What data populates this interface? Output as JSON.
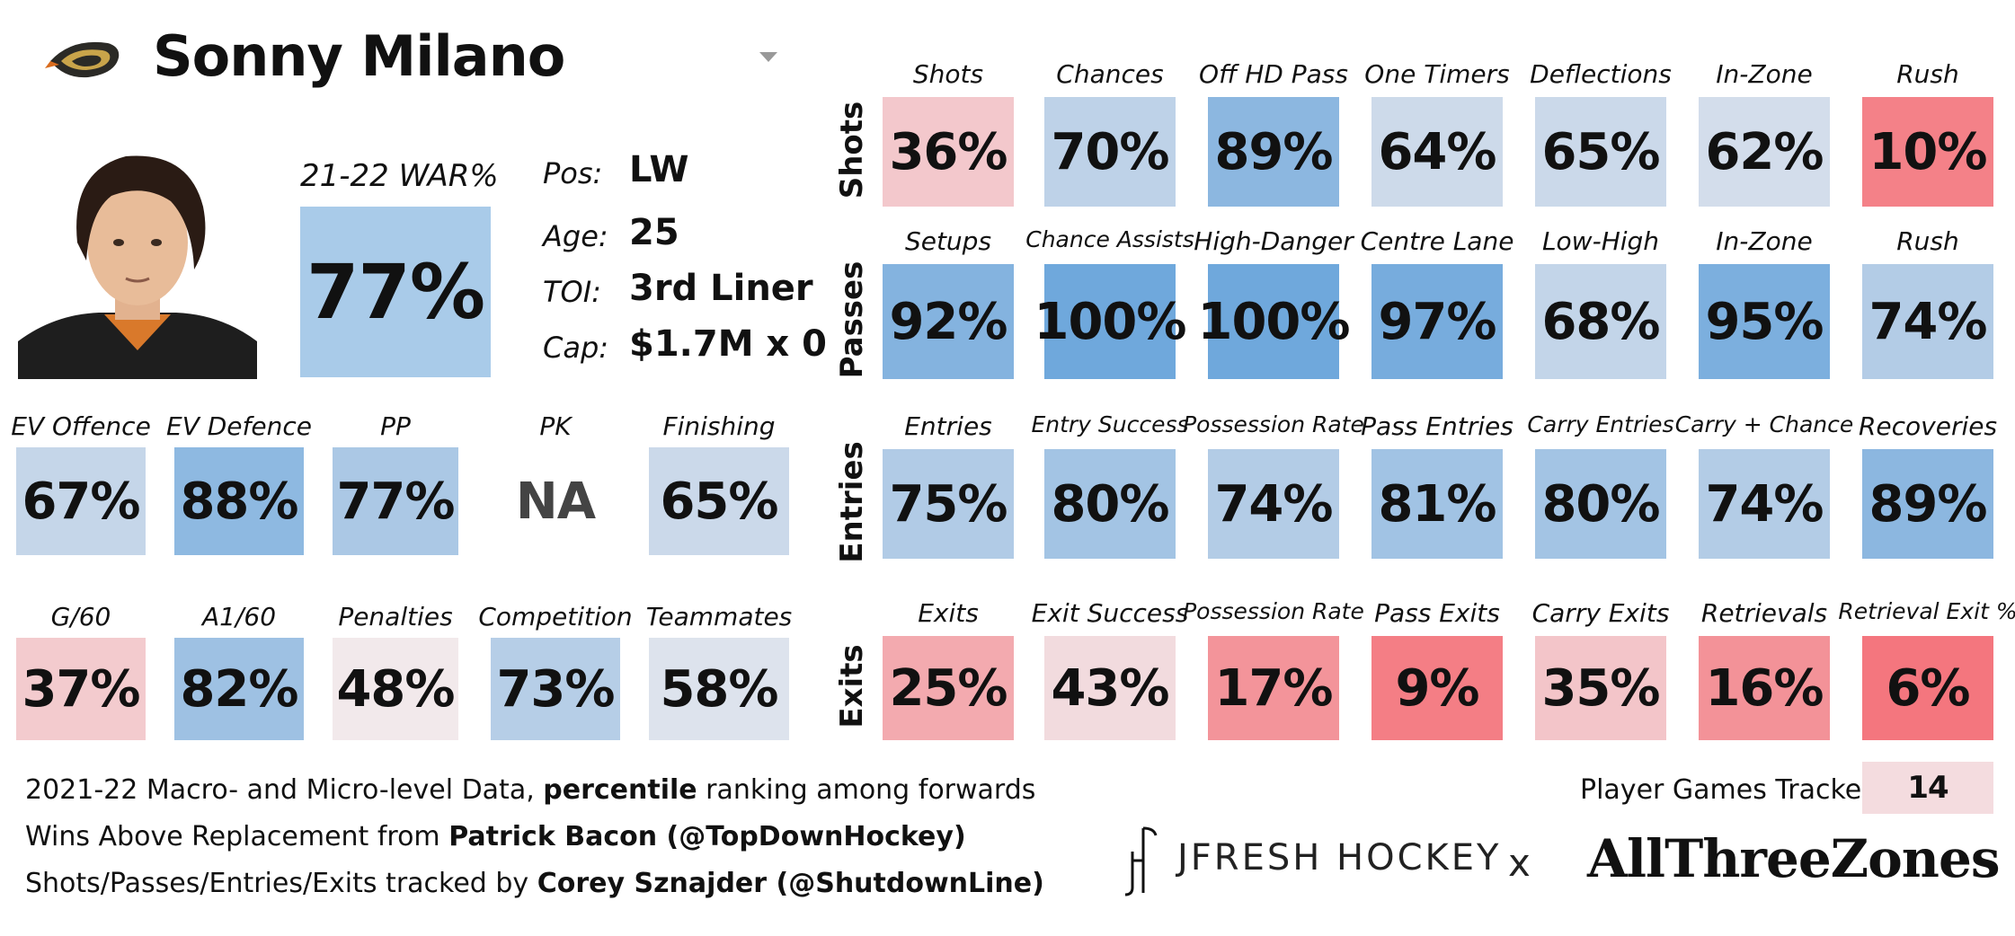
{
  "header": {
    "player_name": "Sonny Milano",
    "war": {
      "label": "21-22 WAR%",
      "value": "77%"
    }
  },
  "info": [
    {
      "key": "Pos:",
      "value": "LW"
    },
    {
      "key": "Age:",
      "value": "25"
    },
    {
      "key": "TOI:",
      "value": "3rd Liner"
    },
    {
      "key": "Cap:",
      "value": "$1.7M x 0"
    }
  ],
  "left_rows": [
    [
      {
        "label": "EV Offence",
        "value": "67%",
        "pct": 67
      },
      {
        "label": "EV Defence",
        "value": "88%",
        "pct": 88
      },
      {
        "label": "PP",
        "value": "77%",
        "pct": 77
      },
      {
        "label": "PK",
        "value": "NA",
        "pct": null
      },
      {
        "label": "Finishing",
        "value": "65%",
        "pct": 65
      }
    ],
    [
      {
        "label": "G/60",
        "value": "37%",
        "pct": 37
      },
      {
        "label": "A1/60",
        "value": "82%",
        "pct": 82
      },
      {
        "label": "Penalties",
        "value": "48%",
        "pct": 48
      },
      {
        "label": "Competition",
        "value": "73%",
        "pct": 73
      },
      {
        "label": "Teammates",
        "value": "58%",
        "pct": 58
      }
    ]
  ],
  "right_rows": [
    {
      "name": "Shots",
      "cells": [
        {
          "label": "Shots",
          "value": "36%",
          "pct": 36
        },
        {
          "label": "Chances",
          "value": "70%",
          "pct": 70
        },
        {
          "label": "Off HD Pass",
          "value": "89%",
          "pct": 89
        },
        {
          "label": "One Timers",
          "value": "64%",
          "pct": 64
        },
        {
          "label": "Deflections",
          "value": "65%",
          "pct": 65
        },
        {
          "label": "In-Zone",
          "value": "62%",
          "pct": 62
        },
        {
          "label": "Rush",
          "value": "10%",
          "pct": 10
        }
      ]
    },
    {
      "name": "Passes",
      "cells": [
        {
          "label": "Setups",
          "value": "92%",
          "pct": 92
        },
        {
          "label": "Chance Assists",
          "value": "100%",
          "pct": 100
        },
        {
          "label": "High-Danger",
          "value": "100%",
          "pct": 100
        },
        {
          "label": "Centre Lane",
          "value": "97%",
          "pct": 97
        },
        {
          "label": "Low-High",
          "value": "68%",
          "pct": 68
        },
        {
          "label": "In-Zone",
          "value": "95%",
          "pct": 95
        },
        {
          "label": "Rush",
          "value": "74%",
          "pct": 74
        }
      ]
    },
    {
      "name": "Entries",
      "cells": [
        {
          "label": "Entries",
          "value": "75%",
          "pct": 75
        },
        {
          "label": "Entry Success",
          "value": "80%",
          "pct": 80
        },
        {
          "label": "Possession Rate",
          "value": "74%",
          "pct": 74
        },
        {
          "label": "Pass Entries",
          "value": "81%",
          "pct": 81
        },
        {
          "label": "Carry Entries",
          "value": "80%",
          "pct": 80
        },
        {
          "label": "Carry + Chance",
          "value": "74%",
          "pct": 74
        },
        {
          "label": "Recoveries",
          "value": "89%",
          "pct": 89
        }
      ]
    },
    {
      "name": "Exits",
      "cells": [
        {
          "label": "Exits",
          "value": "25%",
          "pct": 25
        },
        {
          "label": "Exit Success",
          "value": "43%",
          "pct": 43
        },
        {
          "label": "Possession Rate",
          "value": "17%",
          "pct": 17
        },
        {
          "label": "Pass Exits",
          "value": "9%",
          "pct": 9
        },
        {
          "label": "Carry Exits",
          "value": "35%",
          "pct": 35
        },
        {
          "label": "Retrievals",
          "value": "16%",
          "pct": 16
        },
        {
          "label": "Retrieval Exit %",
          "value": "6%",
          "pct": 6
        }
      ]
    }
  ],
  "footer": {
    "line1_pre": "2021-22 Macro- and Micro-level Data, ",
    "line1_bold": "percentile",
    "line1_post": " ranking among forwards",
    "line2_pre": "Wins Above Replacement from ",
    "line2_bold": "Patrick Bacon (@TopDownHockey)",
    "line3_pre": "Shots/Passes/Entries/Exits tracked by ",
    "line3_bold": "Corey Sznajder (@ShutdownLine)",
    "games_label": "Player Games Tracked:",
    "games_value": "14",
    "brand1": "JFRESH HOCKEY",
    "brand_x": "x",
    "brand2": "AllThreeZones"
  },
  "colors": {
    "blue_strong": "#6fa8dc",
    "blue_light": "#cfe2f3",
    "neutral": "#f2ecec",
    "red_strong": "#f46d75",
    "red_light": "#f4c7cb"
  },
  "icons": {
    "team_logo": "duck-logo-icon",
    "dropdown": "dropdown-caret-icon",
    "headshot": "player-headshot"
  }
}
